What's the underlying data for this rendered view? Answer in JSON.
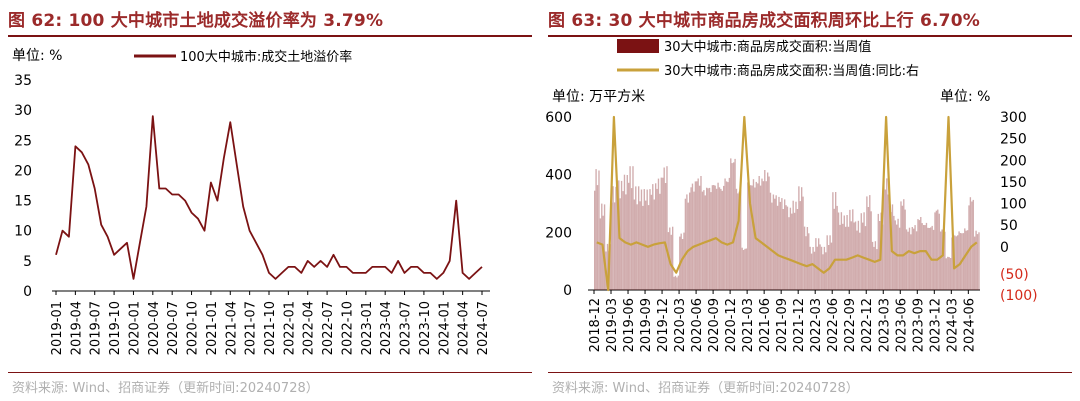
{
  "left": {
    "title": "图 62:  100 大中城市土地成交溢价率为 3.79%",
    "source": "资料来源:  Wind、招商证券（更新时间:20240728）",
    "unit_label": "单位:  %",
    "line_color": "#7b1213"
  },
  "right": {
    "title": "图 63:  30 大中城市商品房成交面积周环比上行 6.70%",
    "source": "资料来源:  Wind、招商证券（更新时间:20240728）",
    "unit_left": "单位:  万平方米",
    "unit_right": "单位:  %",
    "bar_color": "#7b1213",
    "line_color": "#c9a13b",
    "negative_tick_color": "#d42a1a"
  },
  "chart_data": [
    {
      "type": "line",
      "xlabel": "",
      "ylabel": "",
      "ylim": [
        0,
        35
      ],
      "yticks": [
        0,
        5,
        10,
        15,
        20,
        25,
        30,
        35
      ],
      "x_tick_labels": [
        "2019-01",
        "2019-04",
        "2019-07",
        "2019-10",
        "2020-01",
        "2020-04",
        "2020-07",
        "2020-10",
        "2021-01",
        "2021-04",
        "2021-07",
        "2021-10",
        "2022-01",
        "2022-04",
        "2022-07",
        "2022-10",
        "2023-01",
        "2023-04",
        "2023-07",
        "2023-10",
        "2024-01",
        "2024-04",
        "2024-07"
      ],
      "grid": false,
      "legend_position": "top",
      "series": [
        {
          "name": "100大中城市:成交土地溢价率",
          "x": [
            "2019-01",
            "2019-02",
            "2019-03",
            "2019-04",
            "2019-05",
            "2019-06",
            "2019-07",
            "2019-08",
            "2019-09",
            "2019-10",
            "2019-11",
            "2019-12",
            "2020-01",
            "2020-02",
            "2020-03",
            "2020-04",
            "2020-05",
            "2020-06",
            "2020-07",
            "2020-08",
            "2020-09",
            "2020-10",
            "2020-11",
            "2020-12",
            "2021-01",
            "2021-02",
            "2021-03",
            "2021-04",
            "2021-05",
            "2021-06",
            "2021-07",
            "2021-08",
            "2021-09",
            "2021-10",
            "2021-11",
            "2021-12",
            "2022-01",
            "2022-02",
            "2022-03",
            "2022-04",
            "2022-05",
            "2022-06",
            "2022-07",
            "2022-08",
            "2022-09",
            "2022-10",
            "2022-11",
            "2022-12",
            "2023-01",
            "2023-02",
            "2023-03",
            "2023-04",
            "2023-05",
            "2023-06",
            "2023-07",
            "2023-08",
            "2023-09",
            "2023-10",
            "2023-11",
            "2023-12",
            "2024-01",
            "2024-02",
            "2024-03",
            "2024-04",
            "2024-05",
            "2024-06",
            "2024-07"
          ],
          "values": [
            6,
            10,
            9,
            24,
            23,
            21,
            17,
            11,
            9,
            6,
            7,
            8,
            2,
            8,
            14,
            29,
            17,
            17,
            16,
            16,
            15,
            13,
            12,
            10,
            18,
            15,
            22,
            28,
            21,
            14,
            10,
            8,
            6,
            3,
            2,
            3,
            4,
            4,
            3,
            5,
            4,
            5,
            4,
            6,
            4,
            4,
            3,
            3,
            3,
            4,
            4,
            4,
            3,
            5,
            3,
            4,
            4,
            3,
            3,
            2,
            3,
            5,
            15,
            3,
            2,
            3,
            4
          ]
        }
      ]
    },
    {
      "type": "bar",
      "xlabel": "",
      "ylabel": "",
      "ylim": [
        0,
        600
      ],
      "yticks": [
        0,
        200,
        400,
        600
      ],
      "y2lim": [
        -100,
        300
      ],
      "y2ticks": [
        "(100)",
        "(50)",
        "0",
        "50",
        "100",
        "150",
        "200",
        "250",
        "300"
      ],
      "x_tick_labels": [
        "2018-12",
        "2019-03",
        "2019-06",
        "2019-09",
        "2019-12",
        "2020-03",
        "2020-06",
        "2020-09",
        "2020-12",
        "2021-03",
        "2021-06",
        "2021-09",
        "2021-12",
        "2022-03",
        "2022-06",
        "2022-09",
        "2022-12",
        "2023-03",
        "2023-06",
        "2023-09",
        "2023-12",
        "2024-03",
        "2024-06"
      ],
      "grid": false,
      "legend_position": "top",
      "series": [
        {
          "name": "30大中城市:商品房成交面积:当周值",
          "axis": "left",
          "type": "bar",
          "x": [
            "2018-12",
            "2019-01",
            "2019-02",
            "2019-03",
            "2019-04",
            "2019-05",
            "2019-06",
            "2019-07",
            "2019-08",
            "2019-09",
            "2019-10",
            "2019-11",
            "2019-12",
            "2020-01",
            "2020-02",
            "2020-03",
            "2020-04",
            "2020-05",
            "2020-06",
            "2020-07",
            "2020-08",
            "2020-09",
            "2020-10",
            "2020-11",
            "2020-12",
            "2021-01",
            "2021-02",
            "2021-03",
            "2021-04",
            "2021-05",
            "2021-06",
            "2021-07",
            "2021-08",
            "2021-09",
            "2021-10",
            "2021-11",
            "2021-12",
            "2022-01",
            "2022-02",
            "2022-03",
            "2022-04",
            "2022-05",
            "2022-06",
            "2022-07",
            "2022-08",
            "2022-09",
            "2022-10",
            "2022-11",
            "2022-12",
            "2023-01",
            "2023-02",
            "2023-03",
            "2023-04",
            "2023-05",
            "2023-06",
            "2023-07",
            "2023-08",
            "2023-09",
            "2023-10",
            "2023-11",
            "2023-12",
            "2024-01",
            "2024-02",
            "2024-03",
            "2024-04",
            "2024-05",
            "2024-06",
            "2024-07"
          ],
          "values": [
            420,
            300,
            160,
            360,
            380,
            400,
            430,
            360,
            350,
            350,
            370,
            390,
            430,
            220,
            50,
            200,
            340,
            380,
            400,
            360,
            370,
            380,
            370,
            400,
            470,
            360,
            150,
            380,
            390,
            400,
            420,
            340,
            330,
            320,
            290,
            310,
            360,
            220,
            150,
            180,
            150,
            190,
            340,
            270,
            260,
            280,
            240,
            270,
            330,
            170,
            270,
            390,
            300,
            250,
            320,
            220,
            230,
            260,
            240,
            230,
            290,
            220,
            120,
            200,
            210,
            220,
            330,
            210
          ]
        },
        {
          "name": "30大中城市:商品房成交面积:当周值:同比:右",
          "axis": "right",
          "type": "line",
          "x": [
            "2018-12",
            "2019-01",
            "2019-02",
            "2019-03",
            "2019-04",
            "2019-05",
            "2019-06",
            "2019-07",
            "2019-08",
            "2019-09",
            "2019-10",
            "2019-11",
            "2019-12",
            "2020-01",
            "2020-02",
            "2020-03",
            "2020-04",
            "2020-05",
            "2020-06",
            "2020-07",
            "2020-08",
            "2020-09",
            "2020-10",
            "2020-11",
            "2020-12",
            "2021-01",
            "2021-02",
            "2021-03",
            "2021-04",
            "2021-05",
            "2021-06",
            "2021-07",
            "2021-08",
            "2021-09",
            "2021-10",
            "2021-11",
            "2021-12",
            "2022-01",
            "2022-02",
            "2022-03",
            "2022-04",
            "2022-05",
            "2022-06",
            "2022-07",
            "2022-08",
            "2022-09",
            "2022-10",
            "2022-11",
            "2022-12",
            "2023-01",
            "2023-02",
            "2023-03",
            "2023-04",
            "2023-05",
            "2023-06",
            "2023-07",
            "2023-08",
            "2023-09",
            "2023-10",
            "2023-11",
            "2023-12",
            "2024-01",
            "2024-02",
            "2024-03",
            "2024-04",
            "2024-05",
            "2024-06",
            "2024-07"
          ],
          "values": [
            10,
            5,
            -100,
            300,
            20,
            10,
            5,
            10,
            5,
            0,
            5,
            8,
            10,
            -40,
            -60,
            -30,
            -10,
            0,
            5,
            10,
            15,
            20,
            10,
            5,
            10,
            60,
            300,
            100,
            20,
            10,
            0,
            -10,
            -20,
            -25,
            -30,
            -35,
            -40,
            -45,
            -40,
            -50,
            -60,
            -50,
            -30,
            -30,
            -30,
            -25,
            -20,
            -25,
            -30,
            -35,
            -30,
            300,
            -10,
            -20,
            -20,
            -10,
            -15,
            -10,
            -10,
            -30,
            -30,
            -20,
            300,
            -50,
            -40,
            -20,
            0,
            10
          ]
        }
      ]
    }
  ]
}
